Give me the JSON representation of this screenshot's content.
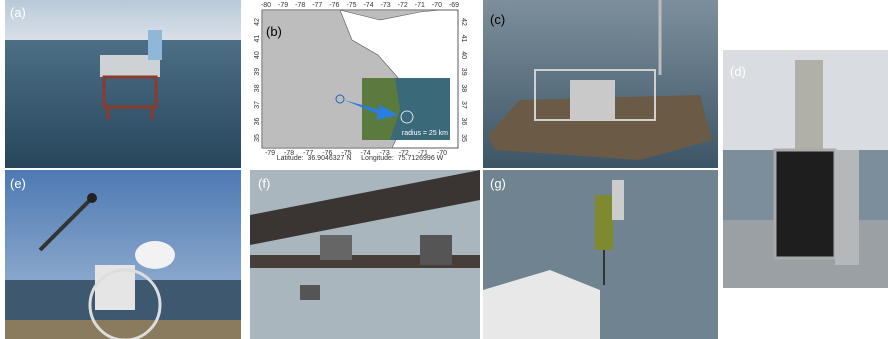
{
  "panels": [
    {
      "label": "(a)"
    },
    {
      "label": "(b)"
    },
    {
      "label": "(c)"
    },
    {
      "label": "(d)"
    },
    {
      "label": "(e)"
    },
    {
      "label": "(f)"
    },
    {
      "label": "(g)"
    }
  ],
  "map": {
    "top_ticks": [
      -80,
      -79,
      -78,
      -77,
      -76,
      -75,
      -74,
      -73,
      -72,
      -71,
      -70,
      -69
    ],
    "bottom_ticks": [
      -79,
      -78,
      -77,
      -76,
      -75,
      -74,
      -73,
      -72,
      -71,
      -70
    ],
    "left_ticks": [
      42,
      41,
      40,
      39,
      38,
      37,
      36,
      35
    ],
    "right_ticks": [
      42,
      41,
      40,
      39,
      38,
      37,
      36,
      35
    ],
    "footer": "Latitude:  36.9046327 N     Longitude:  75.7126996 W",
    "inset_label": "radius = 25 km"
  }
}
